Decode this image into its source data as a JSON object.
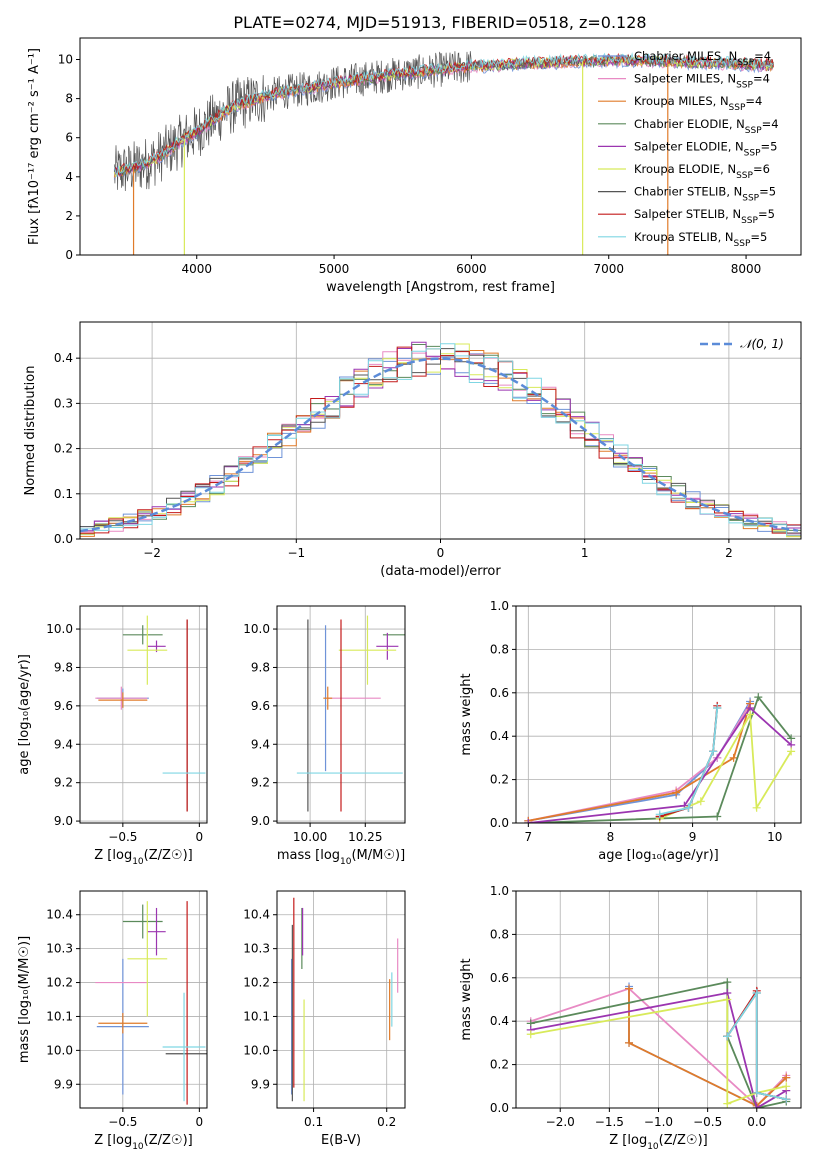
{
  "figure": {
    "title": "PLATE=0274, MJD=51913, FIBERID=0518, z=0.128"
  },
  "palette": {
    "Chabrier MILES": "#6f93d8",
    "Salpeter MILES": "#e88ac4",
    "Kroupa MILES": "#e07b2a",
    "Chabrier ELODIE": "#5b8a5b",
    "Salpeter ELODIE": "#9b35b0",
    "Kroupa ELODIE": "#d8ea5a",
    "Chabrier STELIB": "#555555",
    "Salpeter STELIB": "#c41a1a",
    "Kroupa STELIB": "#7fd6e3",
    "gaussian": "#5b8bd8"
  },
  "chart_data": [
    {
      "id": "spectrum",
      "type": "line",
      "xlabel": "wavelength [Angstrom, rest frame]",
      "ylabel": "Flux [fλ10⁻¹⁷ erg cm⁻² s⁻¹ A⁻¹]",
      "xlim": [
        3150,
        8400
      ],
      "ylim": [
        0,
        11.1
      ],
      "xticks": [
        4000,
        5000,
        6000,
        7000,
        8000
      ],
      "yticks": [
        0,
        2,
        4,
        6,
        8,
        10
      ],
      "grid": false,
      "legend_position": "top-right",
      "continuum": {
        "x": [
          3400,
          3500,
          3600,
          3700,
          3800,
          3900,
          4000,
          4100,
          4200,
          4300,
          4400,
          4500,
          4600,
          4800,
          5000,
          5200,
          5400,
          5600,
          5800,
          6000,
          6200,
          6400,
          6600,
          6800,
          7000,
          7200,
          7400,
          7600,
          7800,
          8000,
          8200
        ],
        "y": [
          4.2,
          4.4,
          4.6,
          4.9,
          5.4,
          5.9,
          6.3,
          6.8,
          7.3,
          7.7,
          7.9,
          8.1,
          8.3,
          8.5,
          8.8,
          9.0,
          9.2,
          9.35,
          9.5,
          9.65,
          9.7,
          9.8,
          9.85,
          9.9,
          9.95,
          9.95,
          9.9,
          9.85,
          9.8,
          9.75,
          9.7
        ]
      },
      "series": [
        {
          "name": "Chabrier MILES, Nₛₛₚ=4",
          "label_main": "Chabrier MILES, N",
          "label_sub": "SSP",
          "label_tail": "=4",
          "key": "Chabrier MILES"
        },
        {
          "name": "Salpeter MILES, Nₛₛₚ=4",
          "label_main": "Salpeter MILES, N",
          "label_sub": "SSP",
          "label_tail": "=4",
          "key": "Salpeter MILES"
        },
        {
          "name": "Kroupa MILES, Nₛₛₚ=4",
          "label_main": "Kroupa MILES, N",
          "label_sub": "SSP",
          "label_tail": "=4",
          "key": "Kroupa MILES"
        },
        {
          "name": "Chabrier ELODIE, Nₛₛₚ=4",
          "label_main": "Chabrier ELODIE, N",
          "label_sub": "SSP",
          "label_tail": "=4",
          "key": "Chabrier ELODIE"
        },
        {
          "name": "Salpeter ELODIE, Nₛₛₚ=5",
          "label_main": "Salpeter ELODIE, N",
          "label_sub": "SSP",
          "label_tail": "=5",
          "key": "Salpeter ELODIE"
        },
        {
          "name": "Kroupa ELODIE, Nₛₛₚ=6",
          "label_main": "Kroupa ELODIE, N",
          "label_sub": "SSP",
          "label_tail": "=6",
          "key": "Kroupa ELODIE"
        },
        {
          "name": "Chabrier STELIB, Nₛₛₚ=5",
          "label_main": "Chabrier STELIB, N",
          "label_sub": "SSP",
          "label_tail": "=5",
          "key": "Chabrier STELIB"
        },
        {
          "name": "Salpeter STELIB, Nₛₛₚ=5",
          "label_main": "Salpeter STELIB, N",
          "label_sub": "SSP",
          "label_tail": "=5",
          "key": "Salpeter STELIB"
        },
        {
          "name": "Kroupa STELIB, Nₛₛₚ=5",
          "label_main": "Kroupa STELIB, N",
          "label_sub": "SSP",
          "label_tail": "=5",
          "key": "Kroupa STELIB"
        }
      ],
      "drops": [
        {
          "key": "Kroupa MILES",
          "x": 3540
        },
        {
          "key": "Kroupa ELODIE",
          "x": 3910
        },
        {
          "key": "Kroupa ELODIE",
          "x": 6810
        },
        {
          "key": "Kroupa MILES",
          "x": 7430
        }
      ]
    },
    {
      "id": "residuals",
      "type": "histogram",
      "xlabel": "(data-model)/error",
      "ylabel": "Normed distribution",
      "xlim": [
        -2.5,
        2.5
      ],
      "ylim": [
        0,
        0.48
      ],
      "xticks": [
        -2,
        -1,
        0,
        1,
        2
      ],
      "yticks": [
        0.0,
        0.1,
        0.2,
        0.3,
        0.4
      ],
      "grid": true,
      "legend_position": "top-right",
      "reference": {
        "name": "𝒩(0, 1)",
        "mean": 0,
        "sigma": 1
      },
      "bin_width": 0.1
    },
    {
      "id": "age-vs-Z",
      "type": "errorbar",
      "xlabel_main": "Z [log",
      "xlabel_sub": "10",
      "xlabel_tail": "(Z/Z☉)]",
      "ylabel": "age  [log₁₀(age/yr)]",
      "xlim": [
        -0.78,
        0.05
      ],
      "ylim": [
        8.99,
        10.12
      ],
      "xticks": [
        -0.5,
        0.0
      ],
      "yticks": [
        9.0,
        9.2,
        9.4,
        9.6,
        9.8,
        10.0
      ],
      "grid": true,
      "points": [
        {
          "key": "Chabrier MILES",
          "x": -0.5,
          "xerr": 0.17,
          "y": 9.64,
          "yerr": 0.05
        },
        {
          "key": "Salpeter MILES",
          "x": -0.51,
          "xerr": 0.17,
          "y": 9.64,
          "yerr": 0.06
        },
        {
          "key": "Kroupa MILES",
          "x": -0.5,
          "xerr": 0.16,
          "y": 9.63,
          "yerr": 0.04
        },
        {
          "key": "Chabrier ELODIE",
          "x": -0.37,
          "xerr": 0.13,
          "y": 9.97,
          "yerr": 0.05
        },
        {
          "key": "Salpeter ELODIE",
          "x": -0.28,
          "xerr": 0.06,
          "y": 9.91,
          "yerr": 0.03
        },
        {
          "key": "Kroupa ELODIE",
          "x": -0.34,
          "xerr": 0.13,
          "y": 9.89,
          "yerr": 0.18
        },
        {
          "key": "Chabrier STELIB",
          "x": -0.08,
          "xerr": 0.0,
          "y": 9.55,
          "yerr": 0.5
        },
        {
          "key": "Salpeter STELIB",
          "x": -0.08,
          "xerr": 0.0,
          "y": 9.55,
          "yerr": 0.5
        },
        {
          "key": "Kroupa STELIB",
          "x": -0.1,
          "xerr": 0.14,
          "y": 9.25,
          "yerr": 0.0
        }
      ]
    },
    {
      "id": "age-vs-mass",
      "type": "errorbar",
      "xlabel_main": "mass [log",
      "xlabel_sub": "10",
      "xlabel_tail": "(M/M☉)]",
      "xlim": [
        9.85,
        10.43
      ],
      "ylim": [
        8.99,
        10.12
      ],
      "xticks": [
        10.0,
        10.25
      ],
      "xtick_labels": [
        "10.00",
        "10.25"
      ],
      "yticks": [
        9.0,
        9.2,
        9.4,
        9.6,
        9.8,
        10.0
      ],
      "grid": true,
      "points": [
        {
          "key": "Chabrier MILES",
          "x": 10.07,
          "xerr": 0.0,
          "y": 9.64,
          "yerr": 0.38
        },
        {
          "key": "Salpeter MILES",
          "x": 10.2,
          "xerr": 0.12,
          "y": 9.64,
          "yerr": 0.0
        },
        {
          "key": "Kroupa MILES",
          "x": 10.08,
          "xerr": 0.02,
          "y": 9.64,
          "yerr": 0.06
        },
        {
          "key": "Chabrier ELODIE",
          "x": 10.38,
          "xerr": 0.05,
          "y": 9.97,
          "yerr": 0.0
        },
        {
          "key": "Salpeter ELODIE",
          "x": 10.35,
          "xerr": 0.05,
          "y": 9.91,
          "yerr": 0.07
        },
        {
          "key": "Kroupa ELODIE",
          "x": 10.26,
          "xerr": 0.13,
          "y": 9.89,
          "yerr": 0.18
        },
        {
          "key": "Chabrier STELIB",
          "x": 9.99,
          "xerr": 0.0,
          "y": 9.55,
          "yerr": 0.5
        },
        {
          "key": "Salpeter STELIB",
          "x": 10.14,
          "xerr": 0.0,
          "y": 9.55,
          "yerr": 0.5
        },
        {
          "key": "Kroupa STELIB",
          "x": 10.18,
          "xerr": 0.24,
          "y": 9.25,
          "yerr": 0.0
        }
      ]
    },
    {
      "id": "mass-weight-vs-age",
      "type": "line",
      "xlabel": "age  [log₁₀(age/yr)]",
      "ylabel": "mass weight",
      "xlim": [
        6.85,
        10.32
      ],
      "ylim": [
        0,
        1.0
      ],
      "xticks": [
        7,
        8,
        9,
        10
      ],
      "yticks": [
        0.0,
        0.2,
        0.4,
        0.6,
        0.8,
        1.0
      ],
      "grid": true,
      "series": [
        {
          "key": "Chabrier MILES",
          "x": [
            7.0,
            8.8,
            9.3,
            9.7
          ],
          "y": [
            0.01,
            0.13,
            0.3,
            0.56
          ]
        },
        {
          "key": "Salpeter MILES",
          "x": [
            7.0,
            8.8,
            9.3,
            9.7
          ],
          "y": [
            0.01,
            0.15,
            0.3,
            0.55
          ]
        },
        {
          "key": "Kroupa MILES",
          "x": [
            7.0,
            8.8,
            9.5,
            9.7
          ],
          "y": [
            0.01,
            0.14,
            0.3,
            0.55
          ]
        },
        {
          "key": "Chabrier ELODIE",
          "x": [
            7.0,
            9.3,
            9.8,
            10.2
          ],
          "y": [
            0.0,
            0.03,
            0.58,
            0.39
          ]
        },
        {
          "key": "Salpeter ELODIE",
          "x": [
            7.0,
            8.9,
            9.7,
            10.2
          ],
          "y": [
            0.0,
            0.08,
            0.53,
            0.36
          ]
        },
        {
          "key": "Kroupa ELODIE",
          "x": [
            8.6,
            9.1,
            9.7,
            9.78,
            10.2
          ],
          "y": [
            0.02,
            0.1,
            0.5,
            0.07,
            0.33
          ]
        },
        {
          "key": "Chabrier STELIB",
          "x": [
            8.6,
            8.95,
            9.25,
            9.3
          ],
          "y": [
            0.03,
            0.07,
            0.33,
            0.53
          ]
        },
        {
          "key": "Salpeter STELIB",
          "x": [
            8.6,
            8.95,
            9.25,
            9.3
          ],
          "y": [
            0.03,
            0.07,
            0.33,
            0.54
          ]
        },
        {
          "key": "Kroupa STELIB",
          "x": [
            8.6,
            8.95,
            9.25,
            9.3
          ],
          "y": [
            0.04,
            0.07,
            0.33,
            0.53
          ]
        }
      ]
    },
    {
      "id": "mass-vs-Z",
      "type": "errorbar",
      "xlabel_main": "Z [log",
      "xlabel_sub": "10",
      "xlabel_tail": "(Z/Z☉)]",
      "ylabel": "mass [log₁₀(M/M☉)]",
      "xlim": [
        -0.78,
        0.05
      ],
      "ylim": [
        9.83,
        10.47
      ],
      "xticks": [
        -0.5,
        0.0
      ],
      "yticks": [
        9.9,
        10.0,
        10.1,
        10.2,
        10.3,
        10.4
      ],
      "grid": true,
      "points": [
        {
          "key": "Chabrier MILES",
          "x": -0.5,
          "xerr": 0.17,
          "y": 10.07,
          "yerr": 0.2
        },
        {
          "key": "Salpeter MILES",
          "x": -0.51,
          "xerr": 0.17,
          "y": 10.2,
          "yerr": 0.0
        },
        {
          "key": "Kroupa MILES",
          "x": -0.5,
          "xerr": 0.16,
          "y": 10.08,
          "yerr": 0.03
        },
        {
          "key": "Chabrier ELODIE",
          "x": -0.37,
          "xerr": 0.13,
          "y": 10.38,
          "yerr": 0.05
        },
        {
          "key": "Salpeter ELODIE",
          "x": -0.28,
          "xerr": 0.06,
          "y": 10.35,
          "yerr": 0.07
        },
        {
          "key": "Kroupa ELODIE",
          "x": -0.34,
          "xerr": 0.13,
          "y": 10.27,
          "yerr": 0.17
        },
        {
          "key": "Chabrier STELIB",
          "x": -0.08,
          "xerr": 0.14,
          "y": 9.99,
          "yerr": 0.0
        },
        {
          "key": "Salpeter STELIB",
          "x": -0.08,
          "xerr": 0.0,
          "y": 10.14,
          "yerr": 0.3
        },
        {
          "key": "Kroupa STELIB",
          "x": -0.1,
          "xerr": 0.14,
          "y": 10.01,
          "yerr": 0.16
        }
      ]
    },
    {
      "id": "mass-vs-ebv",
      "type": "errorbar",
      "xlabel": "E(B-V)",
      "xlim": [
        0.05,
        0.225
      ],
      "ylim": [
        9.83,
        10.47
      ],
      "xticks": [
        0.1,
        0.2
      ],
      "yticks": [
        9.9,
        10.0,
        10.1,
        10.2,
        10.3,
        10.4
      ],
      "grid": true,
      "points": [
        {
          "key": "Chabrier MILES",
          "x": 0.07,
          "xerr": 0.0,
          "y": 10.07,
          "yerr": 0.2
        },
        {
          "key": "Salpeter MILES",
          "x": 0.215,
          "xerr": 0.0,
          "y": 10.25,
          "yerr": 0.08
        },
        {
          "key": "Kroupa MILES",
          "x": 0.204,
          "xerr": 0.0,
          "y": 10.12,
          "yerr": 0.09
        },
        {
          "key": "Chabrier ELODIE",
          "x": 0.084,
          "xerr": 0.0,
          "y": 10.33,
          "yerr": 0.09
        },
        {
          "key": "Salpeter ELODIE",
          "x": 0.085,
          "xerr": 0.0,
          "y": 10.35,
          "yerr": 0.07
        },
        {
          "key": "Kroupa ELODIE",
          "x": 0.087,
          "xerr": 0.0,
          "y": 10.0,
          "yerr": 0.15
        },
        {
          "key": "Chabrier STELIB",
          "x": 0.071,
          "xerr": 0.0,
          "y": 10.11,
          "yerr": 0.26
        },
        {
          "key": "Salpeter STELIB",
          "x": 0.073,
          "xerr": 0.0,
          "y": 10.17,
          "yerr": 0.28
        },
        {
          "key": "Kroupa STELIB",
          "x": 0.207,
          "xerr": 0.0,
          "y": 10.15,
          "yerr": 0.08
        }
      ]
    },
    {
      "id": "mass-weight-vs-Z",
      "type": "line",
      "xlabel_main": "Z [log",
      "xlabel_sub": "10",
      "xlabel_tail": "(Z/Z☉)]",
      "ylabel": "mass weight",
      "xlim": [
        -2.45,
        0.45
      ],
      "ylim": [
        0,
        1.0
      ],
      "xticks": [
        -2.0,
        -1.5,
        -1.0,
        -0.5,
        0.0
      ],
      "xtick_labels": [
        "−2.0",
        "−1.5",
        "−1.0",
        "−0.5",
        "0.0"
      ],
      "yticks": [
        0.0,
        0.2,
        0.4,
        0.6,
        0.8,
        1.0
      ],
      "grid": true,
      "series": [
        {
          "key": "Chabrier MILES",
          "x": [
            -1.3,
            -1.3,
            0.0,
            0.3
          ],
          "y": [
            0.56,
            0.3,
            0.01,
            0.14
          ]
        },
        {
          "key": "Salpeter MILES",
          "x": [
            -2.3,
            -1.3,
            0.0,
            0.3
          ],
          "y": [
            0.4,
            0.55,
            0.01,
            0.15
          ]
        },
        {
          "key": "Kroupa MILES",
          "x": [
            -1.3,
            -1.3,
            0.0,
            0.3
          ],
          "y": [
            0.55,
            0.3,
            0.01,
            0.14
          ]
        },
        {
          "key": "Chabrier ELODIE",
          "x": [
            -2.3,
            -0.3,
            -0.3,
            0.0,
            0.3
          ],
          "y": [
            0.39,
            0.58,
            0.33,
            0.0,
            0.03
          ]
        },
        {
          "key": "Salpeter ELODIE",
          "x": [
            -2.3,
            -0.3,
            0.0,
            0.3
          ],
          "y": [
            0.36,
            0.53,
            0.0,
            0.08
          ]
        },
        {
          "key": "Kroupa ELODIE",
          "x": [
            -2.3,
            -0.3,
            -0.3,
            0.0,
            0.3
          ],
          "y": [
            0.34,
            0.5,
            0.02,
            0.07,
            0.1
          ]
        },
        {
          "key": "Chabrier STELIB",
          "x": [
            -0.3,
            0.0,
            0.0,
            0.3
          ],
          "y": [
            0.33,
            0.53,
            0.07,
            0.04
          ]
        },
        {
          "key": "Salpeter STELIB",
          "x": [
            -0.3,
            0.0,
            0.0,
            0.3
          ],
          "y": [
            0.33,
            0.54,
            0.07,
            0.04
          ]
        },
        {
          "key": "Kroupa STELIB",
          "x": [
            -0.3,
            0.0,
            0.0,
            0.3
          ],
          "y": [
            0.33,
            0.53,
            0.07,
            0.04
          ]
        }
      ]
    }
  ]
}
